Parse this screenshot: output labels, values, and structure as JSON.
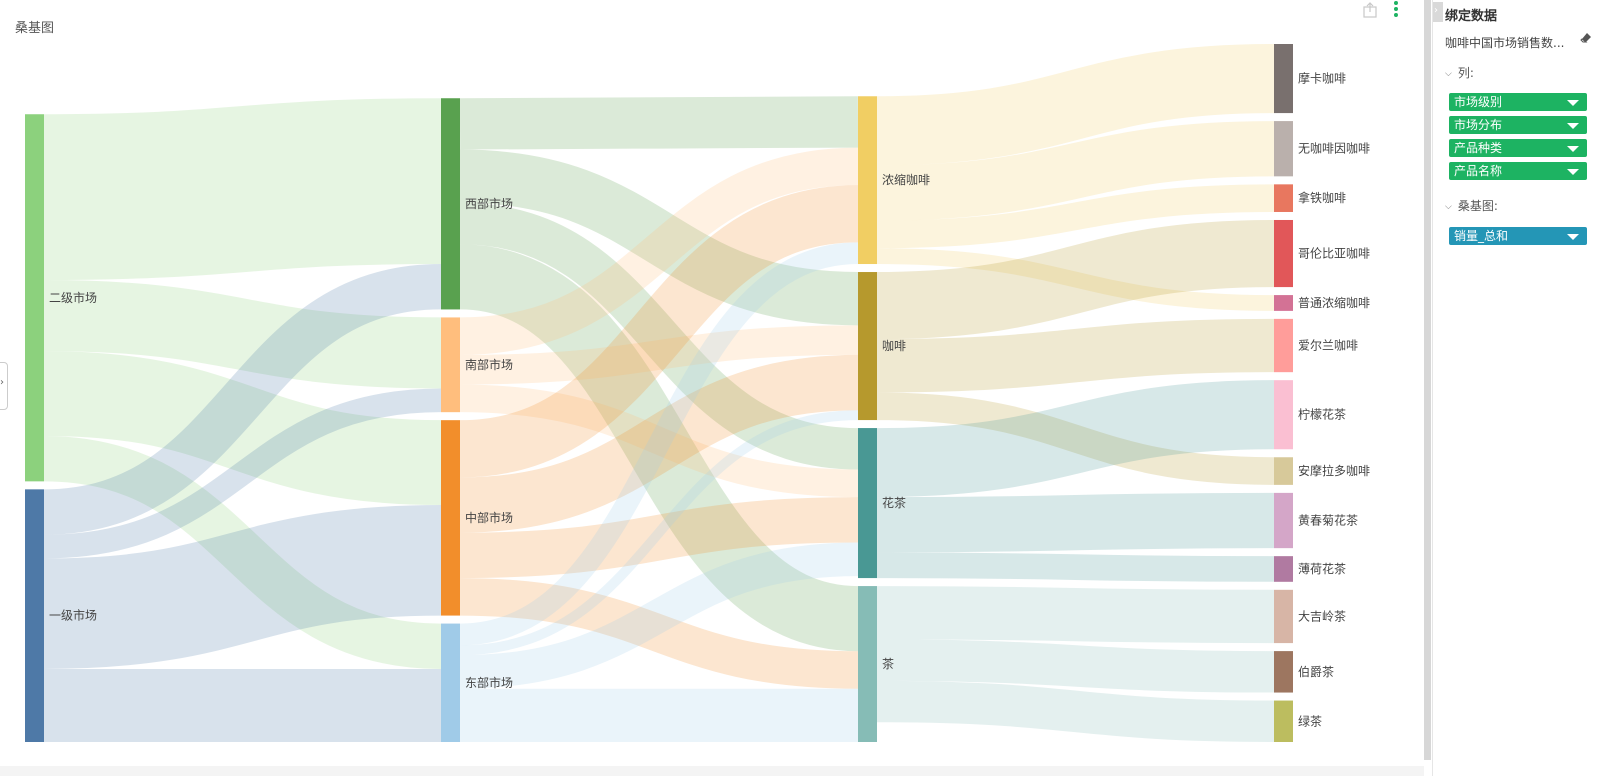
{
  "chart_title": "桑基图",
  "colors": {
    "column_field": "#1db362",
    "value_field": "#2496b6"
  },
  "panel": {
    "title": "绑定数据",
    "dataset": "咖啡中国市场销售数...",
    "columns_label": "列:",
    "column_fields": [
      "市场级别",
      "市场分布",
      "产品种类",
      "产品名称"
    ],
    "sankey_label": "桑基图:",
    "value_fields": [
      "销量_总和"
    ]
  },
  "chart_data": {
    "type": "sankey",
    "title": "桑基图",
    "columns": [
      [
        "二级市场",
        "一级市场"
      ],
      [
        "西部市场",
        "南部市场",
        "中部市场",
        "东部市场"
      ],
      [
        "浓缩咖啡",
        "咖啡",
        "花茶",
        "茶"
      ],
      [
        "摩卡咖啡",
        "无咖啡因咖啡",
        "拿铁咖啡",
        "哥伦比亚咖啡",
        "普通浓缩咖啡",
        "爱尔兰咖啡",
        "柠檬花茶",
        "安摩拉多咖啡",
        "黄春菊花茶",
        "薄荷花茶",
        "大吉岭茶",
        "伯爵茶",
        "绿茶"
      ]
    ],
    "node_colors": {
      "二级市场": "#8cd17d",
      "一级市场": "#4e79a7",
      "西部市场": "#59a14f",
      "南部市场": "#ffbe7d",
      "中部市场": "#f28e2b",
      "东部市场": "#a0cbe8",
      "浓缩咖啡": "#f1ce63",
      "咖啡": "#b6992d",
      "花茶": "#499894",
      "茶": "#86bcb6",
      "摩卡咖啡": "#79706e",
      "无咖啡因咖啡": "#bab0ac",
      "拿铁咖啡": "#e8775f",
      "哥伦比亚咖啡": "#e15759",
      "普通浓缩咖啡": "#d37295",
      "爱尔兰咖啡": "#ff9d9a",
      "柠檬花茶": "#fabfd2",
      "安摩拉多咖啡": "#d7c99a",
      "黄春菊花茶": "#d4a6c8",
      "薄荷花茶": "#b07aa1",
      "大吉岭茶": "#d7b5a6",
      "伯爵茶": "#9d7660",
      "绿茶": "#bcbd5f"
    },
    "links": [
      {
        "source": "二级市场",
        "target": "西部市场",
        "value": 84
      },
      {
        "source": "二级市场",
        "target": "南部市场",
        "value": 36
      },
      {
        "source": "二级市场",
        "target": "中部市场",
        "value": 43
      },
      {
        "source": "二级市场",
        "target": "东部市场",
        "value": 23
      },
      {
        "source": "一级市场",
        "target": "西部市场",
        "value": 23
      },
      {
        "source": "一级市场",
        "target": "南部市场",
        "value": 12
      },
      {
        "source": "一级市场",
        "target": "中部市场",
        "value": 56
      },
      {
        "source": "一级市场",
        "target": "东部市场",
        "value": 37
      },
      {
        "source": "西部市场",
        "target": "浓缩咖啡",
        "value": 26
      },
      {
        "source": "西部市场",
        "target": "咖啡",
        "value": 27
      },
      {
        "source": "西部市场",
        "target": "花茶",
        "value": 21
      },
      {
        "source": "西部市场",
        "target": "茶",
        "value": 33
      },
      {
        "source": "南部市场",
        "target": "浓缩咖啡",
        "value": 19
      },
      {
        "source": "南部市场",
        "target": "咖啡",
        "value": 15
      },
      {
        "source": "南部市场",
        "target": "花茶",
        "value": 14
      },
      {
        "source": "中部市场",
        "target": "浓缩咖啡",
        "value": 29
      },
      {
        "source": "中部市场",
        "target": "咖啡",
        "value": 28
      },
      {
        "source": "中部市场",
        "target": "花茶",
        "value": 23
      },
      {
        "source": "中部市场",
        "target": "茶",
        "value": 19
      },
      {
        "source": "东部市场",
        "target": "浓缩咖啡",
        "value": 11
      },
      {
        "source": "东部市场",
        "target": "咖啡",
        "value": 5
      },
      {
        "source": "东部市场",
        "target": "花茶",
        "value": 17
      },
      {
        "source": "东部市场",
        "target": "茶",
        "value": 27
      },
      {
        "source": "浓缩咖啡",
        "target": "摩卡咖啡",
        "value": 35
      },
      {
        "source": "浓缩咖啡",
        "target": "无咖啡因咖啡",
        "value": 28
      },
      {
        "source": "浓缩咖啡",
        "target": "拿铁咖啡",
        "value": 14
      },
      {
        "source": "浓缩咖啡",
        "target": "普通浓缩咖啡",
        "value": 8
      },
      {
        "source": "咖啡",
        "target": "哥伦比亚咖啡",
        "value": 34
      },
      {
        "source": "咖啡",
        "target": "爱尔兰咖啡",
        "value": 27
      },
      {
        "source": "咖啡",
        "target": "安摩拉多咖啡",
        "value": 14
      },
      {
        "source": "花茶",
        "target": "柠檬花茶",
        "value": 35
      },
      {
        "source": "花茶",
        "target": "黄春菊花茶",
        "value": 28
      },
      {
        "source": "花茶",
        "target": "薄荷花茶",
        "value": 13
      },
      {
        "source": "茶",
        "target": "大吉岭茶",
        "value": 27
      },
      {
        "source": "茶",
        "target": "伯爵茶",
        "value": 21
      },
      {
        "source": "茶",
        "target": "绿茶",
        "value": 21
      }
    ]
  }
}
